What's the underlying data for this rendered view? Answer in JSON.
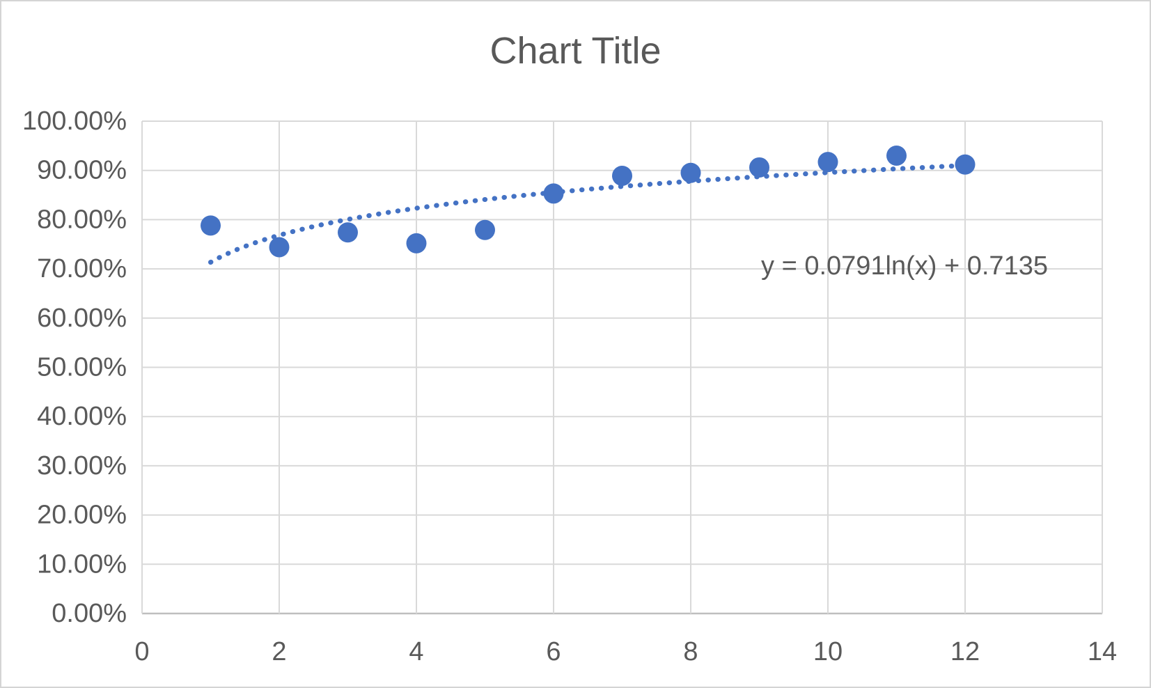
{
  "frame": {
    "background": "#ffffff",
    "border_color": "#d4d4d4"
  },
  "chart_data": {
    "type": "scatter",
    "title": "Chart Title",
    "x": [
      1,
      2,
      3,
      4,
      5,
      6,
      7,
      8,
      9,
      10,
      11,
      12
    ],
    "y_percent": [
      78.8,
      74.4,
      77.4,
      75.2,
      77.9,
      85.3,
      88.9,
      89.5,
      90.6,
      91.7,
      93.0,
      91.2
    ],
    "xlim": [
      0,
      14
    ],
    "ylim_percent": [
      0,
      100
    ],
    "x_tick_values": [
      0,
      2,
      4,
      6,
      8,
      10,
      12,
      14
    ],
    "x_tick_labels": [
      "0",
      "2",
      "4",
      "6",
      "8",
      "10",
      "12",
      "14"
    ],
    "y_tick_values": [
      0,
      10,
      20,
      30,
      40,
      50,
      60,
      70,
      80,
      90,
      100
    ],
    "y_tick_labels": [
      "0.00%",
      "10.00%",
      "20.00%",
      "30.00%",
      "40.00%",
      "50.00%",
      "60.00%",
      "70.00%",
      "80.00%",
      "90.00%",
      "100.00%"
    ],
    "grid": true,
    "legend": "none",
    "marker_color": "#4472c4",
    "gridline_color": "#d9d9d9",
    "axis_line_color": "#bfbfbf",
    "text_color": "#595959",
    "trendline": {
      "type": "logarithmic",
      "equation_label": "y = 0.0791ln(x) + 0.7135",
      "coef_a": 0.0791,
      "intercept_b": 0.7135,
      "line_style": "dotted",
      "color": "#4472c4",
      "x_range": [
        1,
        12
      ]
    }
  }
}
